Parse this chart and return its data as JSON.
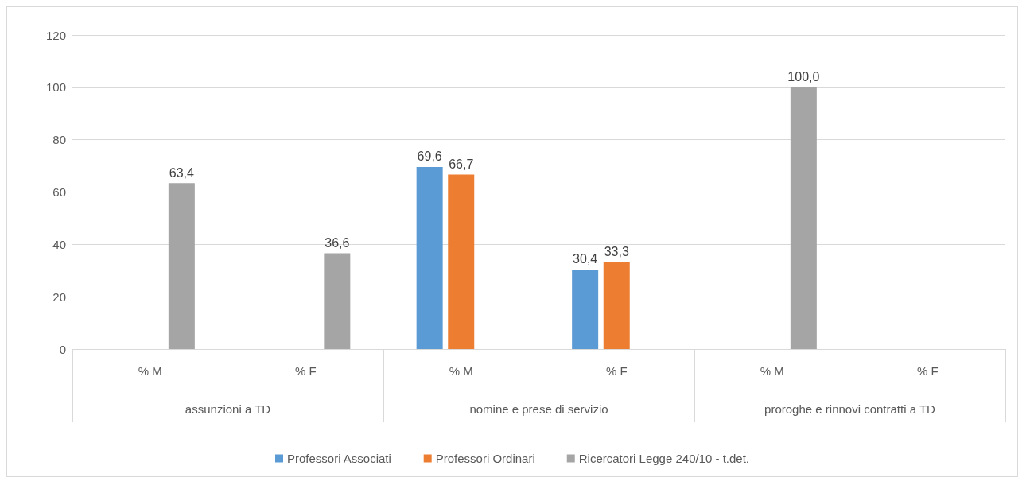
{
  "chart_data": {
    "type": "bar",
    "categories": [
      "% M",
      "% F",
      "% M",
      "% F",
      "% M",
      "% F"
    ],
    "annotations": [
      "assunzioni a TD",
      "nomine e prese di servizio",
      "proroghe e rinnovi contratti a TD"
    ],
    "series": [
      {
        "name": "Professori Associati",
        "color": "#5b9bd5",
        "values": [
          null,
          null,
          69.6,
          30.4,
          null,
          null
        ],
        "value_labels": [
          null,
          null,
          "69,6",
          "30,4",
          null,
          null
        ]
      },
      {
        "name": "Professori Ordinari",
        "color": "#ed7d31",
        "values": [
          null,
          null,
          66.7,
          33.3,
          null,
          null
        ],
        "value_labels": [
          null,
          null,
          "66,7",
          "33,3",
          null,
          null
        ]
      },
      {
        "name": "Ricercatori Legge 240/10 - t.det.",
        "color": "#a5a5a5",
        "values": [
          63.4,
          36.6,
          null,
          null,
          100.0,
          null
        ],
        "value_labels": [
          "63,4",
          "36,6",
          null,
          null,
          "100,0",
          null
        ]
      }
    ],
    "ylim": [
      0,
      120
    ],
    "yticks": [
      0,
      20,
      40,
      60,
      80,
      100,
      120
    ],
    "grid": "y",
    "legend": "bottom"
  }
}
